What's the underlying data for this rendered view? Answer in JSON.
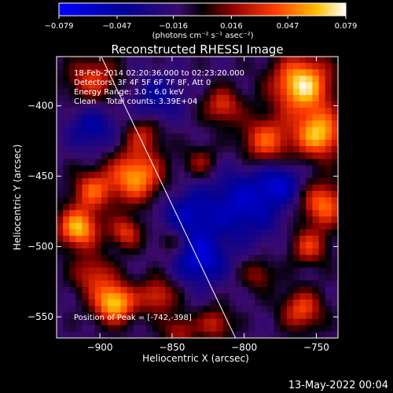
{
  "chart_data": {
    "type": "heatmap",
    "title": "Reconstructed RHESSI Image",
    "xlabel": "Heliocentric X (arcsec)",
    "ylabel": "Heliocentric Y (arcsec)",
    "xlim": [
      -930,
      -735
    ],
    "ylim": [
      -565,
      -365
    ],
    "x_ticks": [
      -900,
      -850,
      -800,
      -750
    ],
    "y_ticks": [
      -400,
      -450,
      -500,
      -550
    ],
    "x_tick_labels": [
      "−900",
      "−850",
      "−800",
      "−750"
    ],
    "y_tick_labels": [
      "−400",
      "−450",
      "−500",
      "−550"
    ],
    "colorbar": {
      "range": [
        -0.079,
        0.079
      ],
      "ticks": [
        -0.079,
        -0.047,
        -0.016,
        0.016,
        0.047,
        0.079
      ],
      "tick_labels": [
        "−0.079",
        "−0.047",
        "−0.016",
        "0.016",
        "0.047",
        "0.079"
      ],
      "unit_label": "(photons cm⁻² s⁻¹ asec⁻²)"
    },
    "annotations": {
      "time_range": "18-Feb-2014 02:20:36.000 to 02:23:20.000",
      "detectors": "Detectors: 3F 4F 5F 6F 7F 8F, Att 0",
      "energy": "Energy Range: 3.0 - 6.0 keV",
      "method_counts": "Clean    Total counts: 3.39E+04",
      "peak": "Position of Peak = [-742,-398]"
    },
    "limb_line": {
      "x": [
        -899,
        -806
      ],
      "y": [
        -365,
        -565
      ]
    },
    "image_grid": {
      "nx": 44,
      "ny": 44
    },
    "hotspots": [
      {
        "x": -760,
        "y": -385,
        "amp": 0.085,
        "r": 14
      },
      {
        "x": -748,
        "y": -420,
        "amp": 0.075,
        "r": 12
      },
      {
        "x": -785,
        "y": -425,
        "amp": 0.055,
        "r": 12
      },
      {
        "x": -815,
        "y": -400,
        "amp": 0.045,
        "r": 9
      },
      {
        "x": -745,
        "y": -470,
        "amp": 0.06,
        "r": 11
      },
      {
        "x": -755,
        "y": -500,
        "amp": 0.045,
        "r": 9
      },
      {
        "x": -905,
        "y": -382,
        "amp": 0.045,
        "r": 12
      },
      {
        "x": -870,
        "y": -420,
        "amp": 0.035,
        "r": 9
      },
      {
        "x": -875,
        "y": -450,
        "amp": 0.07,
        "r": 13
      },
      {
        "x": -905,
        "y": -460,
        "amp": 0.05,
        "r": 10
      },
      {
        "x": -915,
        "y": -487,
        "amp": 0.075,
        "r": 10
      },
      {
        "x": -882,
        "y": -490,
        "amp": 0.045,
        "r": 8
      },
      {
        "x": -905,
        "y": -520,
        "amp": 0.04,
        "r": 10
      },
      {
        "x": -890,
        "y": -540,
        "amp": 0.08,
        "r": 10
      },
      {
        "x": -860,
        "y": -535,
        "amp": 0.045,
        "r": 9
      },
      {
        "x": -850,
        "y": -495,
        "amp": 0.03,
        "r": 8
      },
      {
        "x": -830,
        "y": -440,
        "amp": 0.03,
        "r": 8
      },
      {
        "x": -790,
        "y": -520,
        "amp": 0.03,
        "r": 8
      },
      {
        "x": -760,
        "y": -545,
        "amp": 0.05,
        "r": 10
      },
      {
        "x": -820,
        "y": -555,
        "amp": 0.04,
        "r": 8
      },
      {
        "x": -845,
        "y": -560,
        "amp": 0.035,
        "r": 8
      },
      {
        "x": -800,
        "y": -470,
        "amp": -0.045,
        "r": 18
      },
      {
        "x": -840,
        "y": -480,
        "amp": -0.04,
        "r": 14
      },
      {
        "x": -830,
        "y": -510,
        "amp": -0.05,
        "r": 12
      },
      {
        "x": -905,
        "y": -415,
        "amp": -0.035,
        "r": 12
      },
      {
        "x": -860,
        "y": -395,
        "amp": -0.03,
        "r": 12
      },
      {
        "x": -775,
        "y": -455,
        "amp": -0.04,
        "r": 10
      }
    ]
  },
  "footer": {
    "timestamp": "13-May-2022 00:04"
  }
}
